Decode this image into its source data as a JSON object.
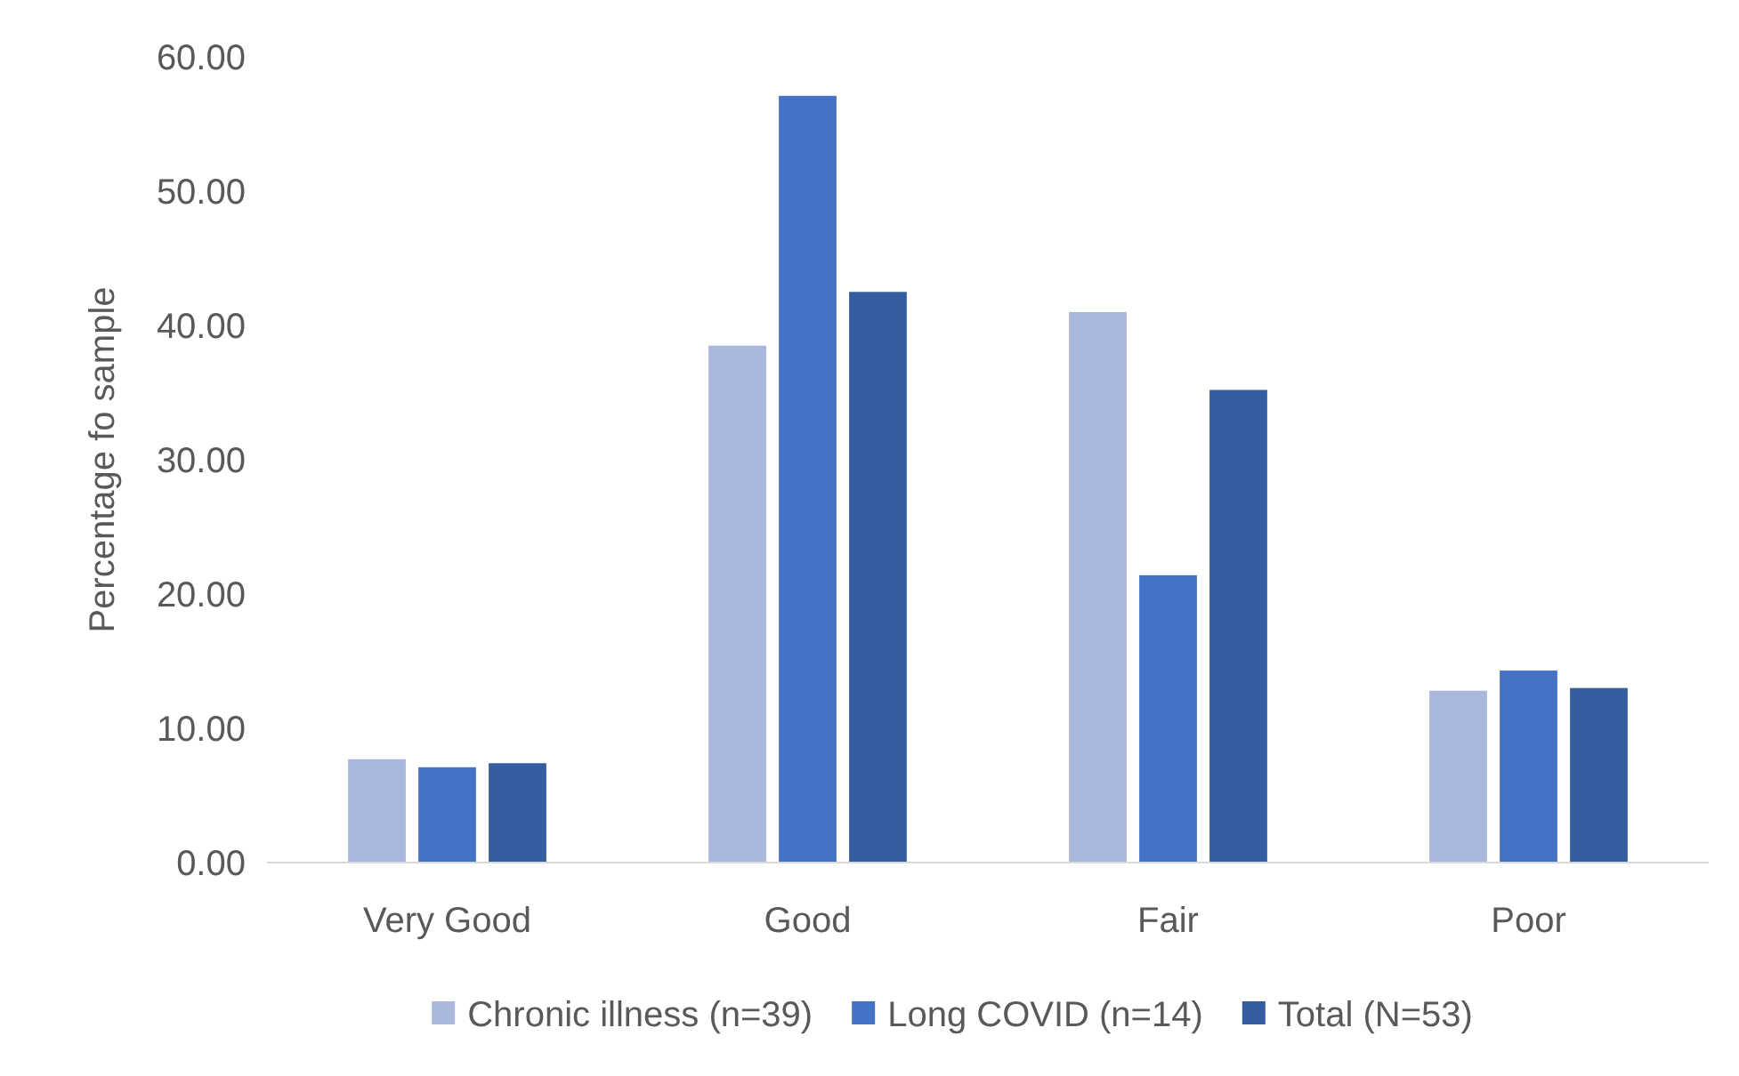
{
  "chart_data": {
    "type": "bar",
    "ylabel": "Percentage fo sample",
    "categories": [
      "Very Good",
      "Good",
      "Fair",
      "Poor"
    ],
    "series": [
      {
        "name": "Chronic illness (n=39)",
        "color": "#a9b8dc",
        "values": [
          7.7,
          38.5,
          41.0,
          12.8
        ]
      },
      {
        "name": "Long COVID (n=14)",
        "color": "#4472c4",
        "values": [
          7.1,
          57.1,
          21.4,
          14.3
        ]
      },
      {
        "name": "Total (N=53)",
        "color": "#345ea0",
        "values": [
          7.4,
          42.5,
          35.2,
          13.0
        ]
      }
    ],
    "ylim": [
      0,
      60
    ],
    "yticks": [
      {
        "value": 0,
        "label": "0.00"
      },
      {
        "value": 10,
        "label": "10.00"
      },
      {
        "value": 20,
        "label": "20.00"
      },
      {
        "value": 30,
        "label": "30.00"
      },
      {
        "value": 40,
        "label": "40.00"
      },
      {
        "value": 50,
        "label": "50.00"
      },
      {
        "value": 60,
        "label": "60.00"
      }
    ],
    "grid": false,
    "legend": "bottom"
  }
}
